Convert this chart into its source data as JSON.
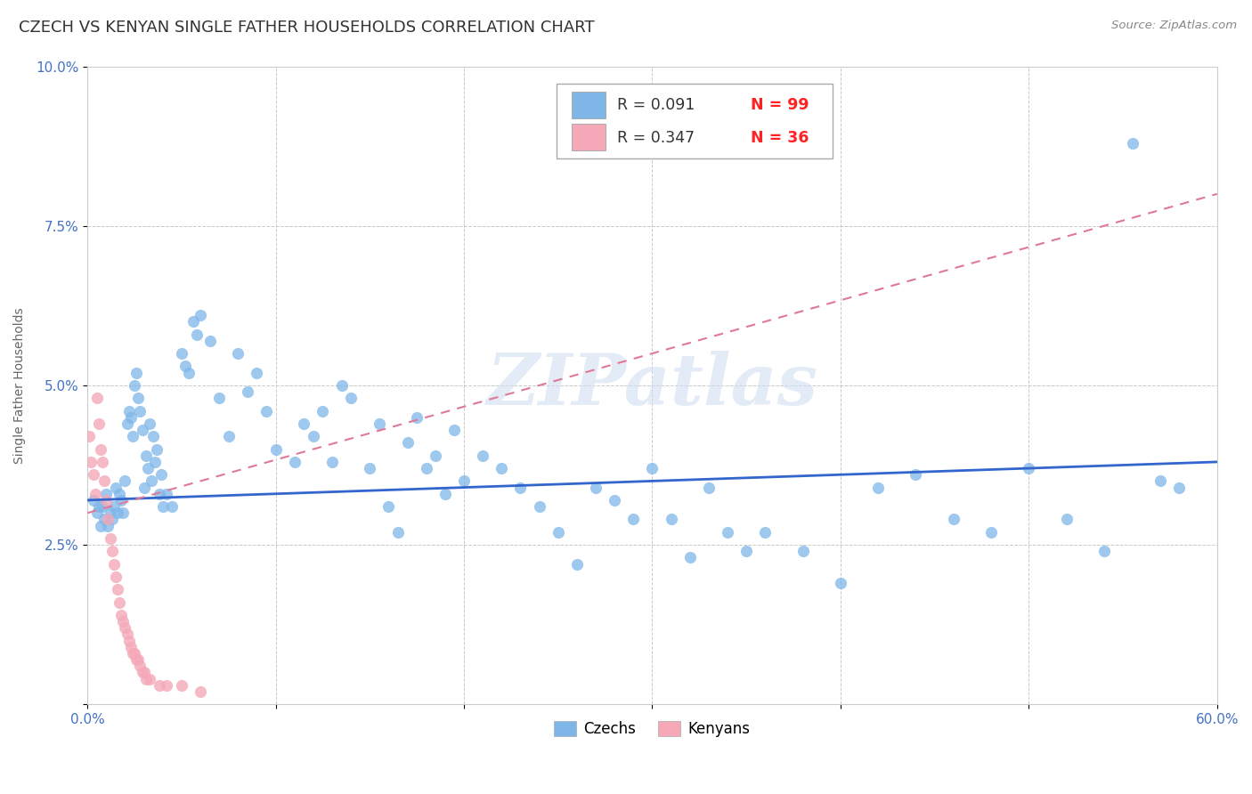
{
  "title": "CZECH VS KENYAN SINGLE FATHER HOUSEHOLDS CORRELATION CHART",
  "source": "Source: ZipAtlas.com",
  "ylabel": "Single Father Households",
  "xlim": [
    0.0,
    0.6
  ],
  "ylim": [
    0.0,
    0.1
  ],
  "xticks": [
    0.0,
    0.1,
    0.2,
    0.3,
    0.4,
    0.5,
    0.6
  ],
  "xticklabels": [
    "0.0%",
    "",
    "",
    "",
    "",
    "",
    "60.0%"
  ],
  "yticks": [
    0.0,
    0.025,
    0.05,
    0.075,
    0.1
  ],
  "yticklabels": [
    "",
    "2.5%",
    "5.0%",
    "7.5%",
    "10.0%"
  ],
  "czech_color": "#7eb6e8",
  "kenyan_color": "#f4a8b8",
  "czech_line_color": "#3366cc",
  "kenyan_line_color": "#e07898",
  "czech_R": 0.091,
  "czech_N": 99,
  "kenyan_R": 0.347,
  "kenyan_N": 36,
  "watermark": "ZIPatlas",
  "background_color": "#ffffff",
  "grid_color": "#bbbbbb",
  "title_fontsize": 13,
  "label_fontsize": 10,
  "tick_fontsize": 11,
  "tick_color": "#4472c4",
  "N_color": "#ff2222",
  "legend_box_color": "#aaaaaa",
  "czech_line_start_y": 0.032,
  "czech_line_end_y": 0.038,
  "kenyan_line_start_y": 0.03,
  "kenyan_line_end_y": 0.08,
  "czech_points": [
    [
      0.003,
      0.032
    ],
    [
      0.005,
      0.03
    ],
    [
      0.006,
      0.031
    ],
    [
      0.007,
      0.028
    ],
    [
      0.008,
      0.031
    ],
    [
      0.009,
      0.029
    ],
    [
      0.01,
      0.033
    ],
    [
      0.011,
      0.028
    ],
    [
      0.012,
      0.03
    ],
    [
      0.013,
      0.029
    ],
    [
      0.014,
      0.031
    ],
    [
      0.015,
      0.034
    ],
    [
      0.016,
      0.03
    ],
    [
      0.017,
      0.033
    ],
    [
      0.018,
      0.032
    ],
    [
      0.019,
      0.03
    ],
    [
      0.02,
      0.035
    ],
    [
      0.021,
      0.044
    ],
    [
      0.022,
      0.046
    ],
    [
      0.023,
      0.045
    ],
    [
      0.024,
      0.042
    ],
    [
      0.025,
      0.05
    ],
    [
      0.026,
      0.052
    ],
    [
      0.027,
      0.048
    ],
    [
      0.028,
      0.046
    ],
    [
      0.029,
      0.043
    ],
    [
      0.03,
      0.034
    ],
    [
      0.031,
      0.039
    ],
    [
      0.032,
      0.037
    ],
    [
      0.033,
      0.044
    ],
    [
      0.034,
      0.035
    ],
    [
      0.035,
      0.042
    ],
    [
      0.036,
      0.038
    ],
    [
      0.037,
      0.04
    ],
    [
      0.038,
      0.033
    ],
    [
      0.039,
      0.036
    ],
    [
      0.04,
      0.031
    ],
    [
      0.042,
      0.033
    ],
    [
      0.045,
      0.031
    ],
    [
      0.05,
      0.055
    ],
    [
      0.052,
      0.053
    ],
    [
      0.054,
      0.052
    ],
    [
      0.056,
      0.06
    ],
    [
      0.058,
      0.058
    ],
    [
      0.06,
      0.061
    ],
    [
      0.065,
      0.057
    ],
    [
      0.07,
      0.048
    ],
    [
      0.075,
      0.042
    ],
    [
      0.08,
      0.055
    ],
    [
      0.085,
      0.049
    ],
    [
      0.09,
      0.052
    ],
    [
      0.095,
      0.046
    ],
    [
      0.1,
      0.04
    ],
    [
      0.11,
      0.038
    ],
    [
      0.115,
      0.044
    ],
    [
      0.12,
      0.042
    ],
    [
      0.125,
      0.046
    ],
    [
      0.13,
      0.038
    ],
    [
      0.135,
      0.05
    ],
    [
      0.14,
      0.048
    ],
    [
      0.15,
      0.037
    ],
    [
      0.155,
      0.044
    ],
    [
      0.16,
      0.031
    ],
    [
      0.165,
      0.027
    ],
    [
      0.17,
      0.041
    ],
    [
      0.175,
      0.045
    ],
    [
      0.18,
      0.037
    ],
    [
      0.185,
      0.039
    ],
    [
      0.19,
      0.033
    ],
    [
      0.195,
      0.043
    ],
    [
      0.2,
      0.035
    ],
    [
      0.21,
      0.039
    ],
    [
      0.22,
      0.037
    ],
    [
      0.23,
      0.034
    ],
    [
      0.24,
      0.031
    ],
    [
      0.25,
      0.027
    ],
    [
      0.26,
      0.022
    ],
    [
      0.27,
      0.034
    ],
    [
      0.28,
      0.032
    ],
    [
      0.29,
      0.029
    ],
    [
      0.3,
      0.037
    ],
    [
      0.31,
      0.029
    ],
    [
      0.32,
      0.023
    ],
    [
      0.33,
      0.034
    ],
    [
      0.34,
      0.027
    ],
    [
      0.35,
      0.024
    ],
    [
      0.36,
      0.027
    ],
    [
      0.38,
      0.024
    ],
    [
      0.4,
      0.019
    ],
    [
      0.42,
      0.034
    ],
    [
      0.44,
      0.036
    ],
    [
      0.46,
      0.029
    ],
    [
      0.48,
      0.027
    ],
    [
      0.5,
      0.037
    ],
    [
      0.52,
      0.029
    ],
    [
      0.54,
      0.024
    ],
    [
      0.555,
      0.088
    ],
    [
      0.57,
      0.035
    ],
    [
      0.58,
      0.034
    ]
  ],
  "kenyan_points": [
    [
      0.001,
      0.042
    ],
    [
      0.002,
      0.038
    ],
    [
      0.003,
      0.036
    ],
    [
      0.004,
      0.033
    ],
    [
      0.005,
      0.048
    ],
    [
      0.006,
      0.044
    ],
    [
      0.007,
      0.04
    ],
    [
      0.008,
      0.038
    ],
    [
      0.009,
      0.035
    ],
    [
      0.01,
      0.032
    ],
    [
      0.011,
      0.029
    ],
    [
      0.012,
      0.026
    ],
    [
      0.013,
      0.024
    ],
    [
      0.014,
      0.022
    ],
    [
      0.015,
      0.02
    ],
    [
      0.016,
      0.018
    ],
    [
      0.017,
      0.016
    ],
    [
      0.018,
      0.014
    ],
    [
      0.019,
      0.013
    ],
    [
      0.02,
      0.012
    ],
    [
      0.021,
      0.011
    ],
    [
      0.022,
      0.01
    ],
    [
      0.023,
      0.009
    ],
    [
      0.024,
      0.008
    ],
    [
      0.025,
      0.008
    ],
    [
      0.026,
      0.007
    ],
    [
      0.027,
      0.007
    ],
    [
      0.028,
      0.006
    ],
    [
      0.029,
      0.005
    ],
    [
      0.03,
      0.005
    ],
    [
      0.031,
      0.004
    ],
    [
      0.033,
      0.004
    ],
    [
      0.038,
      0.003
    ],
    [
      0.042,
      0.003
    ],
    [
      0.05,
      0.003
    ],
    [
      0.06,
      0.002
    ]
  ]
}
